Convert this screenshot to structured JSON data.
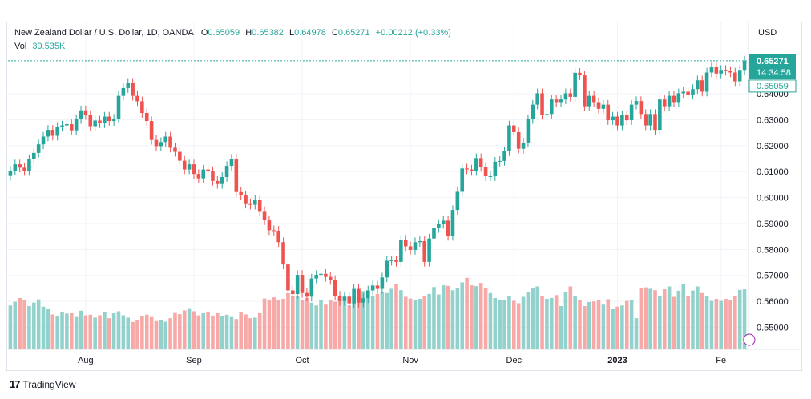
{
  "legend": {
    "symbol_title": "New Zealand Dollar / U.S. Dollar, 1D, OANDA",
    "o_label": "O",
    "o_value": "0.65059",
    "h_label": "H",
    "h_value": "0.65382",
    "l_label": "L",
    "l_value": "0.64978",
    "c_label": "C",
    "c_value": "0.65271",
    "change": "+0.00212 (+0.33%)",
    "vol_label": "Vol",
    "vol_value": "39.535K"
  },
  "footer": {
    "logo_text": "17",
    "brand": "TradingView"
  },
  "colors": {
    "up": "#26a69a",
    "down": "#ef5350",
    "up_vol": "#93d2cc",
    "down_vol": "#f7a9a7",
    "grid": "#f0f3fa",
    "axis_text": "#131722"
  },
  "chart_data": {
    "type": "candlestick",
    "currency_label": "USD",
    "price_ylim": [
      0.5415,
      0.6675
    ],
    "y_ticks": [
      "0.55000",
      "0.56000",
      "0.57000",
      "0.58000",
      "0.59000",
      "0.60000",
      "0.61000",
      "0.62000",
      "0.63000",
      "0.64000"
    ],
    "x_ticks": [
      {
        "label": "Aug",
        "index": 16
      },
      {
        "label": "Sep",
        "index": 39
      },
      {
        "label": "Oct",
        "index": 62
      },
      {
        "label": "Nov",
        "index": 85
      },
      {
        "label": "Dec",
        "index": 107
      },
      {
        "label": "2023",
        "index": 129,
        "bold": true
      },
      {
        "label": "Fe",
        "index": 151
      }
    ],
    "last_price_label": {
      "value": "0.65271",
      "time": "14:34:58"
    },
    "open_price_label": {
      "value": "0.65059"
    },
    "closes": [
      0.6103,
      0.6128,
      0.6115,
      0.6102,
      0.6148,
      0.6172,
      0.6205,
      0.6235,
      0.6261,
      0.6238,
      0.6272,
      0.6278,
      0.6283,
      0.6259,
      0.6302,
      0.6336,
      0.6318,
      0.6275,
      0.6297,
      0.6286,
      0.6312,
      0.6295,
      0.6304,
      0.6392,
      0.6422,
      0.6442,
      0.6392,
      0.6371,
      0.6326,
      0.6295,
      0.6222,
      0.6198,
      0.6214,
      0.6235,
      0.6192,
      0.6176,
      0.6142,
      0.6108,
      0.6128,
      0.6091,
      0.6074,
      0.6108,
      0.6102,
      0.6064,
      0.6052,
      0.6079,
      0.6122,
      0.6149,
      0.6021,
      0.6008,
      0.5978,
      0.5972,
      0.5992,
      0.5948,
      0.5912,
      0.5874,
      0.5872,
      0.5828,
      0.5742,
      0.5642,
      0.5628,
      0.5702,
      0.5632,
      0.5618,
      0.5688,
      0.5702,
      0.5706,
      0.5694,
      0.5682,
      0.5622,
      0.5601,
      0.5618,
      0.5592,
      0.5648,
      0.5595,
      0.5612,
      0.5642,
      0.5661,
      0.5648,
      0.5692,
      0.5756,
      0.5758,
      0.5752,
      0.5838,
      0.5812,
      0.5798,
      0.5828,
      0.5832,
      0.5752,
      0.5842,
      0.5882,
      0.5898,
      0.5911,
      0.5852,
      0.5952,
      0.6022,
      0.6112,
      0.6108,
      0.6102,
      0.6152,
      0.6118,
      0.6082,
      0.6082,
      0.6138,
      0.6141,
      0.6178,
      0.6278,
      0.6252,
      0.6188,
      0.6212,
      0.6302,
      0.6358,
      0.6402,
      0.6318,
      0.6322,
      0.6378,
      0.6368,
      0.6378,
      0.6402,
      0.6388,
      0.6481,
      0.6471,
      0.6352,
      0.6392,
      0.6368,
      0.6342,
      0.6358,
      0.6298,
      0.6312,
      0.6278,
      0.6317,
      0.6298,
      0.6358,
      0.6372,
      0.6322,
      0.6278,
      0.6322,
      0.6261,
      0.6378,
      0.6352,
      0.6392,
      0.6368,
      0.6402,
      0.6408,
      0.6396,
      0.6418,
      0.6452,
      0.6408,
      0.6482,
      0.6502,
      0.6478,
      0.6492,
      0.6488,
      0.6482,
      0.6448,
      0.6492,
      0.6527
    ],
    "volumes": [
      15.2,
      16.5,
      17.8,
      17.1,
      15.0,
      16.2,
      17.3,
      14.8,
      13.9,
      12.1,
      11.6,
      12.8,
      12.4,
      12.5,
      11.2,
      13.4,
      11.8,
      12.0,
      11.0,
      11.8,
      12.8,
      10.8,
      12.5,
      13.2,
      11.8,
      11.0,
      9.5,
      10.2,
      11.6,
      12.0,
      11.2,
      9.8,
      10.1,
      9.6,
      10.8,
      12.6,
      12.2,
      13.5,
      14.0,
      13.2,
      11.8,
      12.5,
      13.1,
      11.7,
      12.5,
      11.4,
      12.0,
      11.2,
      10.5,
      13.0,
      12.1,
      10.8,
      11.0,
      12.5,
      17.6,
      17.2,
      18.0,
      17.0,
      17.5,
      19.5,
      18.6,
      18.5,
      17.2,
      17.8,
      16.2,
      15.2,
      17.0,
      15.5,
      17.0,
      16.5,
      17.5,
      18.2,
      15.2,
      18.6,
      19.0,
      20.2,
      19.8,
      18.5,
      19.2,
      20.0,
      19.5,
      21.0,
      22.5,
      20.5,
      18.2,
      17.6,
      17.2,
      17.5,
      18.5,
      19.2,
      21.6,
      19.0,
      22.2,
      22.0,
      20.5,
      21.3,
      23.2,
      24.8,
      22.2,
      21.9,
      23.0,
      21.2,
      19.5,
      17.8,
      17.2,
      17.0,
      18.4,
      16.8,
      16.0,
      18.2,
      19.8,
      21.2,
      21.8,
      18.4,
      17.5,
      17.8,
      18.8,
      15.0,
      19.8,
      21.8,
      18.5,
      17.2,
      15.0,
      16.4,
      16.6,
      17.0,
      15.5,
      17.4,
      13.9,
      14.8,
      15.2,
      16.8,
      17.0,
      10.8,
      21.2,
      21.5,
      21.0,
      20.5,
      18.5,
      20.8,
      21.8,
      18.2,
      20.3,
      22.5,
      18.5,
      20.4,
      21.8,
      19.5,
      18.5,
      16.8,
      17.5,
      16.8,
      17.5,
      17.2,
      18.4,
      20.6,
      20.8
    ],
    "volume_max": 62
  }
}
